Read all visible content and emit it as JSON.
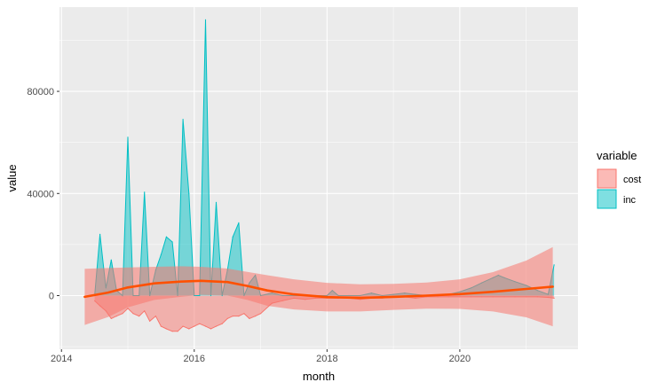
{
  "chart_data": {
    "type": "area",
    "xlabel": "month",
    "ylabel": "value",
    "x_ticks": [
      "2014",
      "2016",
      "2018",
      "2020"
    ],
    "y_ticks": [
      "0",
      "40000",
      "80000"
    ],
    "xlim": [
      2013.97,
      2021.78
    ],
    "ylim": [
      -21000,
      113000
    ],
    "grid": true,
    "legend": {
      "title": "variable",
      "position": "right",
      "entries": [
        {
          "label": "cost",
          "fill": "#F8766D",
          "stroke": "#F8766D"
        },
        {
          "label": "inc",
          "fill": "#00BFC4",
          "stroke": "#00BFC4"
        }
      ]
    },
    "colors": {
      "panel": "#EBEBEB",
      "grid": "#FFFFFF",
      "cost": "#F8766D",
      "inc": "#00BFC4",
      "smooth": "#FF5000",
      "band": "#F8766D"
    },
    "series": [
      {
        "name": "cost",
        "x": [
          2014.5,
          2014.58,
          2014.67,
          2014.75,
          2014.83,
          2014.92,
          2015.0,
          2015.08,
          2015.17,
          2015.25,
          2015.33,
          2015.42,
          2015.5,
          2015.58,
          2015.67,
          2015.75,
          2015.83,
          2015.92,
          2016.0,
          2016.08,
          2016.17,
          2016.25,
          2016.33,
          2016.42,
          2016.5,
          2016.58,
          2016.67,
          2016.75,
          2016.83,
          2016.92,
          2017.0,
          2017.17,
          2017.33,
          2017.5,
          2017.67,
          2017.83,
          2018.0,
          2018.17,
          2018.33,
          2018.5,
          2018.67,
          2018.83,
          2019.0,
          2019.17,
          2019.33,
          2019.5,
          2019.67,
          2019.83,
          2020.0,
          2020.17,
          2020.33,
          2020.5,
          2020.67,
          2020.83,
          2021.0,
          2021.17,
          2021.33,
          2021.42
        ],
        "values": [
          -2000,
          -4000,
          -6000,
          -9000,
          -8000,
          -7000,
          -5000,
          -7000,
          -8000,
          -6000,
          -10000,
          -8000,
          -12000,
          -13000,
          -14000,
          -14000,
          -12000,
          -13000,
          -12000,
          -11000,
          -12000,
          -13000,
          -12000,
          -11000,
          -9000,
          -8000,
          -8000,
          -7000,
          -9000,
          -8000,
          -7000,
          -3000,
          -2000,
          -1000,
          -1500,
          -1000,
          -1000,
          -1000,
          -1000,
          -1500,
          -1000,
          -1000,
          -500,
          -500,
          -1000,
          -500,
          -500,
          -500,
          -500,
          -500,
          -500,
          -500,
          -500,
          -500,
          -500,
          -500,
          -700,
          -1000
        ]
      },
      {
        "name": "inc",
        "x": [
          2014.5,
          2014.58,
          2014.67,
          2014.75,
          2014.83,
          2014.92,
          2015.0,
          2015.08,
          2015.17,
          2015.25,
          2015.33,
          2015.42,
          2015.5,
          2015.58,
          2015.67,
          2015.75,
          2015.83,
          2015.92,
          2016.0,
          2016.08,
          2016.17,
          2016.25,
          2016.33,
          2016.42,
          2016.5,
          2016.58,
          2016.67,
          2016.75,
          2016.83,
          2016.92,
          2017.0,
          2017.17,
          2017.33,
          2017.5,
          2017.67,
          2017.83,
          2018.0,
          2018.08,
          2018.17,
          2018.33,
          2018.5,
          2018.67,
          2018.83,
          2019.0,
          2019.17,
          2019.33,
          2019.5,
          2019.67,
          2019.83,
          2020.0,
          2020.17,
          2020.33,
          2020.5,
          2020.58,
          2020.67,
          2020.83,
          2021.0,
          2021.17,
          2021.33,
          2021.42
        ],
        "values": [
          0,
          24000,
          3000,
          14000,
          2000,
          0,
          62000,
          0,
          0,
          40500,
          0,
          10000,
          16000,
          23000,
          21000,
          0,
          69000,
          40000,
          0,
          0,
          108000,
          0,
          36500,
          0,
          10000,
          23000,
          28500,
          0,
          5000,
          8000,
          0,
          1000,
          0,
          0,
          0,
          0,
          0,
          2000,
          0,
          0,
          0,
          1000,
          0,
          500,
          1000,
          500,
          0,
          0,
          500,
          1500,
          3000,
          5000,
          7000,
          8000,
          7000,
          5500,
          4000,
          2000,
          500,
          12000
        ]
      },
      {
        "name": "",
        "x": [
          2014.35,
          2014.7,
          2015.0,
          2015.4,
          2015.8,
          2016.1,
          2016.5,
          2016.8,
          2017.1,
          2017.5,
          2018.0,
          2018.5,
          2019.0,
          2019.5,
          2020.0,
          2020.5,
          2021.0,
          2021.4
        ],
        "values": [
          -500,
          1200,
          3200,
          4800,
          5500,
          5800,
          5300,
          3800,
          2000,
          500,
          -600,
          -900,
          -500,
          0,
          600,
          1500,
          2600,
          3500
        ],
        "band_upper": [
          10500,
          10800,
          11000,
          11300,
          11500,
          11300,
          10600,
          9300,
          8000,
          6400,
          5000,
          4400,
          4600,
          5100,
          6400,
          9200,
          13700,
          19000
        ],
        "band_lower": [
          -11500,
          -8400,
          -4600,
          -1700,
          -500,
          300,
          0,
          -1700,
          -4000,
          -5400,
          -6200,
          -6200,
          -5600,
          -5100,
          -5200,
          -6200,
          -8500,
          -12000
        ]
      }
    ]
  }
}
